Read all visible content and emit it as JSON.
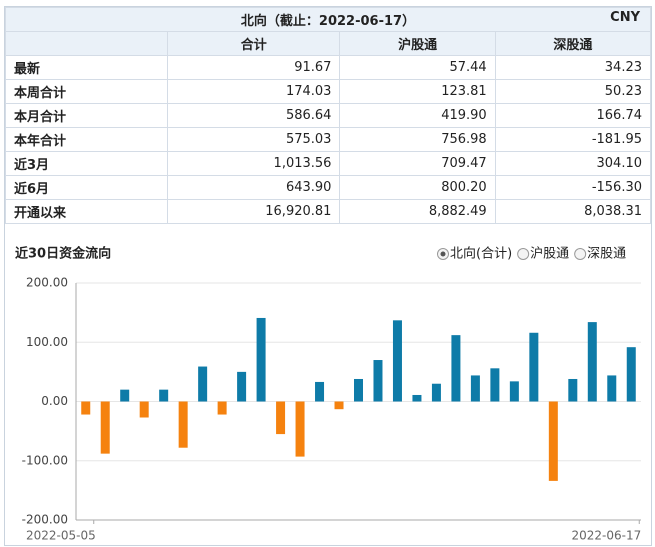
{
  "table": {
    "title": "北向（截止：2022-06-17）",
    "currency": "CNY",
    "columns": [
      "合计",
      "沪股通",
      "深股通"
    ],
    "rows": [
      [
        "最新",
        "91.67",
        "57.44",
        "34.23"
      ],
      [
        "本周合计",
        "174.03",
        "123.81",
        "50.23"
      ],
      [
        "本月合计",
        "586.64",
        "419.90",
        "166.74"
      ],
      [
        "本年合计",
        "575.03",
        "756.98",
        "-181.95"
      ],
      [
        "近3月",
        "1,013.56",
        "709.47",
        "304.10"
      ],
      [
        "近6月",
        "643.90",
        "800.20",
        "-156.30"
      ],
      [
        "开通以来",
        "16,920.81",
        "8,882.49",
        "8,038.31"
      ]
    ]
  },
  "chart_data": {
    "type": "bar",
    "title": "近30日资金流向",
    "legend_options": [
      "北向(合计)",
      "沪股通",
      "深股通"
    ],
    "selected": 0,
    "categories": [
      "2022-05-05",
      null,
      null,
      null,
      null,
      null,
      null,
      null,
      null,
      null,
      null,
      null,
      null,
      null,
      null,
      null,
      null,
      null,
      null,
      null,
      null,
      null,
      null,
      null,
      null,
      null,
      null,
      null,
      "2022-06-17"
    ],
    "values": [
      -22,
      -88,
      20,
      -27,
      20,
      -78,
      59,
      -22,
      50,
      141,
      -55,
      -93,
      33,
      -13,
      38,
      70,
      137,
      11,
      30,
      112,
      44,
      56,
      34,
      116,
      -134,
      38,
      134,
      44,
      91.67
    ],
    "positive_color": "#0e7ba8",
    "negative_color": "#f5820f",
    "ylim": [
      -200,
      200
    ],
    "yticks": [
      {
        "value": -200,
        "label": "-200.00"
      },
      {
        "value": -100,
        "label": "-100.00"
      },
      {
        "value": 0,
        "label": "0.00"
      },
      {
        "value": 100,
        "label": "100.00"
      },
      {
        "value": 200,
        "label": "200.00"
      }
    ],
    "grid": true
  }
}
